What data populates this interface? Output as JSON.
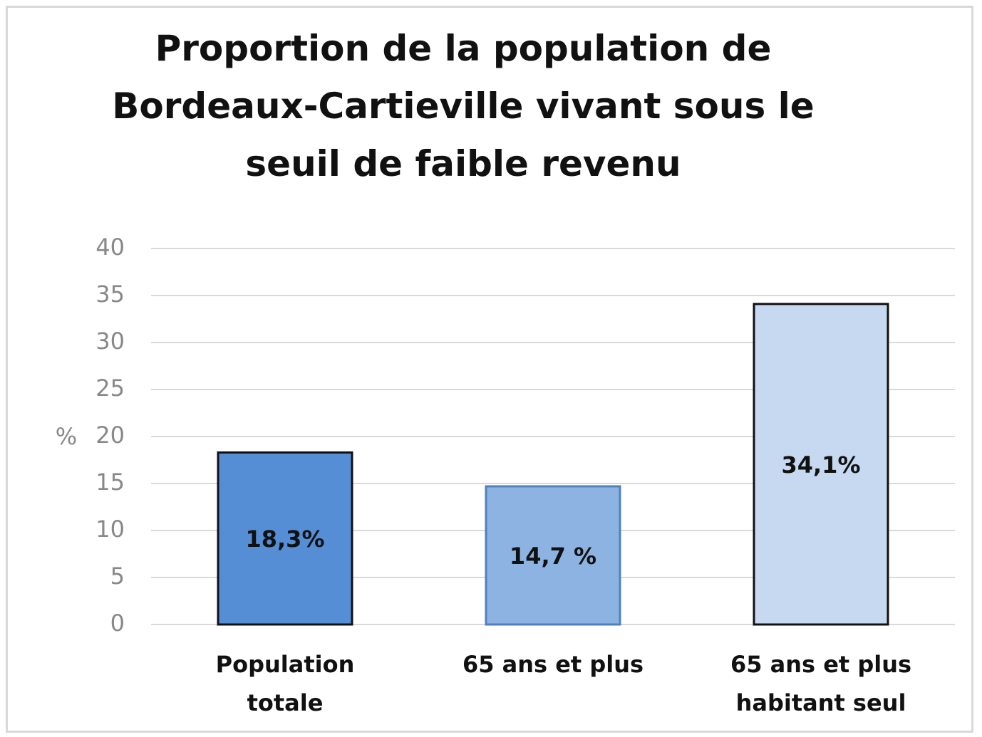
{
  "chart_data": {
    "type": "bar",
    "title": "Proportion de la population de Bordeaux-Cartieville vivant sous le seuil de faible revenu",
    "ylabel": "%",
    "categories": [
      "Population totale",
      "65 ans et plus",
      "65 ans et plus habitant seul"
    ],
    "values": [
      18.3,
      14.7,
      34.1
    ],
    "value_labels": [
      "18,3%",
      "14,7 %",
      "34,1%"
    ],
    "colors": [
      "#558ed5",
      "#8db3e2",
      "#c6d9f1"
    ],
    "edgecolors": [
      "#111111",
      "#4f81bd",
      "#111111"
    ],
    "ylim": [
      0,
      40
    ],
    "yticks": [
      0,
      5,
      10,
      15,
      20,
      25,
      30,
      35,
      40
    ],
    "grid": true
  }
}
